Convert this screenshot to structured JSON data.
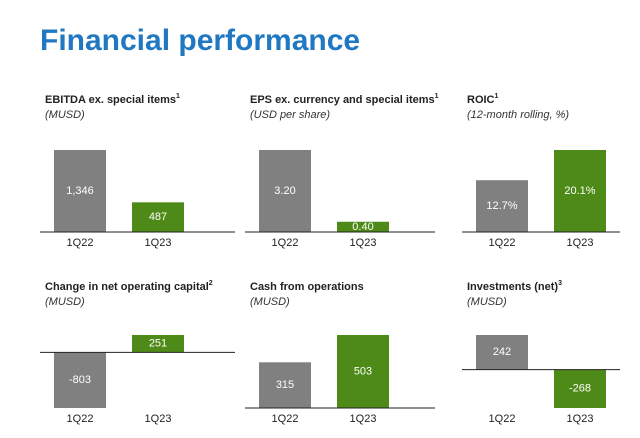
{
  "title": "Financial performance",
  "chart_data": [
    {
      "type": "bar",
      "title": "EBITDA ex. special items",
      "footnote_mark": "1",
      "subtitle": "(MUSD)",
      "categories": [
        "1Q22",
        "1Q23"
      ],
      "values": [
        1346,
        487
      ],
      "value_labels": [
        "1,346",
        "487"
      ],
      "colors": [
        "#808080",
        "#4e8a17"
      ]
    },
    {
      "type": "bar",
      "title": "EPS ex. currency and special items",
      "footnote_mark": "1",
      "subtitle": "(USD per share)",
      "categories": [
        "1Q22",
        "1Q23"
      ],
      "values": [
        3.2,
        0.4
      ],
      "value_labels": [
        "3.20",
        "0.40"
      ],
      "colors": [
        "#808080",
        "#4e8a17"
      ]
    },
    {
      "type": "bar",
      "title": "ROIC",
      "footnote_mark": "1",
      "subtitle": "(12-month rolling, %)",
      "categories": [
        "1Q22",
        "1Q23"
      ],
      "values": [
        12.7,
        20.1
      ],
      "value_labels": [
        "12.7%",
        "20.1%"
      ],
      "colors": [
        "#808080",
        "#4e8a17"
      ]
    },
    {
      "type": "bar",
      "title": "Change in net operating capital",
      "footnote_mark": "2",
      "subtitle": "(MUSD)",
      "categories": [
        "1Q22",
        "1Q23"
      ],
      "values": [
        -803,
        251
      ],
      "colors": [
        "#808080",
        "#4e8a17"
      ]
    },
    {
      "type": "bar",
      "title": "Cash from operations",
      "subtitle": "(MUSD)",
      "categories": [
        "1Q22",
        "1Q23"
      ],
      "values": [
        315,
        503
      ],
      "colors": [
        "#808080",
        "#4e8a17"
      ]
    },
    {
      "type": "bar",
      "title": "Investments (net)",
      "footnote_mark": "3",
      "subtitle": "(MUSD)",
      "categories": [
        "1Q22",
        "1Q23"
      ],
      "values": [
        242,
        -268
      ],
      "colors": [
        "#808080",
        "#4e8a17"
      ]
    }
  ]
}
